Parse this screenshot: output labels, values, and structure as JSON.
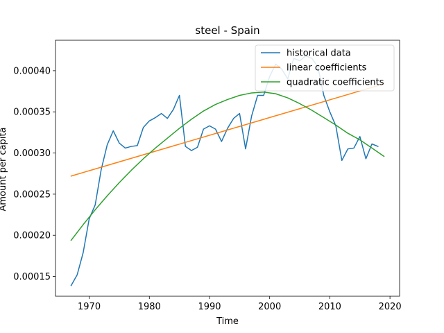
{
  "chart_data": {
    "type": "line",
    "title": "steel - Spain",
    "xlabel": "Time",
    "ylabel": "Amount per capita",
    "xlim": [
      1964.4,
      2021.6
    ],
    "ylim": [
      0.000126,
      0.000437
    ],
    "xticks": [
      1970,
      1980,
      1990,
      2000,
      2010,
      2020
    ],
    "yticks": [
      0.00015,
      0.0002,
      0.00025,
      0.0003,
      0.00035,
      0.0004
    ],
    "ytick_labels": [
      "0.00015",
      "0.00020",
      "0.00025",
      "0.00030",
      "0.00035",
      "0.00040"
    ],
    "grid": false,
    "legend_position": "top-right",
    "series": [
      {
        "name": "historical data",
        "color": "#1f77b4",
        "x": [
          1967,
          1968,
          1969,
          1970,
          1971,
          1972,
          1973,
          1974,
          1975,
          1976,
          1977,
          1978,
          1979,
          1980,
          1981,
          1982,
          1983,
          1984,
          1985,
          1986,
          1987,
          1988,
          1989,
          1990,
          1991,
          1992,
          1993,
          1994,
          1995,
          1996,
          1997,
          1998,
          1999,
          2000,
          2001,
          2002,
          2003,
          2004,
          2005,
          2006,
          2007,
          2008,
          2009,
          2010,
          2011,
          2012,
          2013,
          2014,
          2015,
          2016,
          2017,
          2018
        ],
        "y": [
          0.000139,
          0.000152,
          0.000179,
          0.00022,
          0.000237,
          0.00028,
          0.00031,
          0.000327,
          0.000312,
          0.000306,
          0.000308,
          0.000309,
          0.000331,
          0.000339,
          0.000343,
          0.000348,
          0.000342,
          0.000353,
          0.00037,
          0.000308,
          0.000303,
          0.000307,
          0.000329,
          0.000333,
          0.000329,
          0.000314,
          0.00033,
          0.000342,
          0.000348,
          0.000305,
          0.000345,
          0.00037,
          0.00037,
          0.000393,
          0.000408,
          0.000402,
          0.00039,
          0.000415,
          0.000412,
          0.000418,
          0.000415,
          0.000405,
          0.00037,
          0.00035,
          0.000333,
          0.000291,
          0.000305,
          0.000306,
          0.00032,
          0.000293,
          0.000311,
          0.000308
        ]
      },
      {
        "name": "linear coefficients",
        "color": "#ff7f0e",
        "x": [
          1967,
          2019
        ],
        "y": [
          0.000272,
          0.000384
        ]
      },
      {
        "name": "quadratic coefficients",
        "color": "#2ca02c",
        "x": [
          1967,
          1969,
          1971,
          1973,
          1975,
          1977,
          1979,
          1981,
          1983,
          1985,
          1987,
          1989,
          1991,
          1993,
          1995,
          1997,
          1999,
          2001,
          2003,
          2005,
          2007,
          2009,
          2011,
          2013,
          2015,
          2017,
          2019
        ],
        "y": [
          0.000194,
          0.000213,
          0.000231,
          0.000248,
          0.000264,
          0.000279,
          0.000293,
          0.000306,
          0.000318,
          0.00033,
          0.000341,
          0.000351,
          0.000359,
          0.000365,
          0.00037,
          0.000373,
          0.000374,
          0.000372,
          0.000367,
          0.00036,
          0.000352,
          0.000343,
          0.000334,
          0.000324,
          0.000316,
          0.000306,
          0.000296
        ]
      }
    ]
  }
}
